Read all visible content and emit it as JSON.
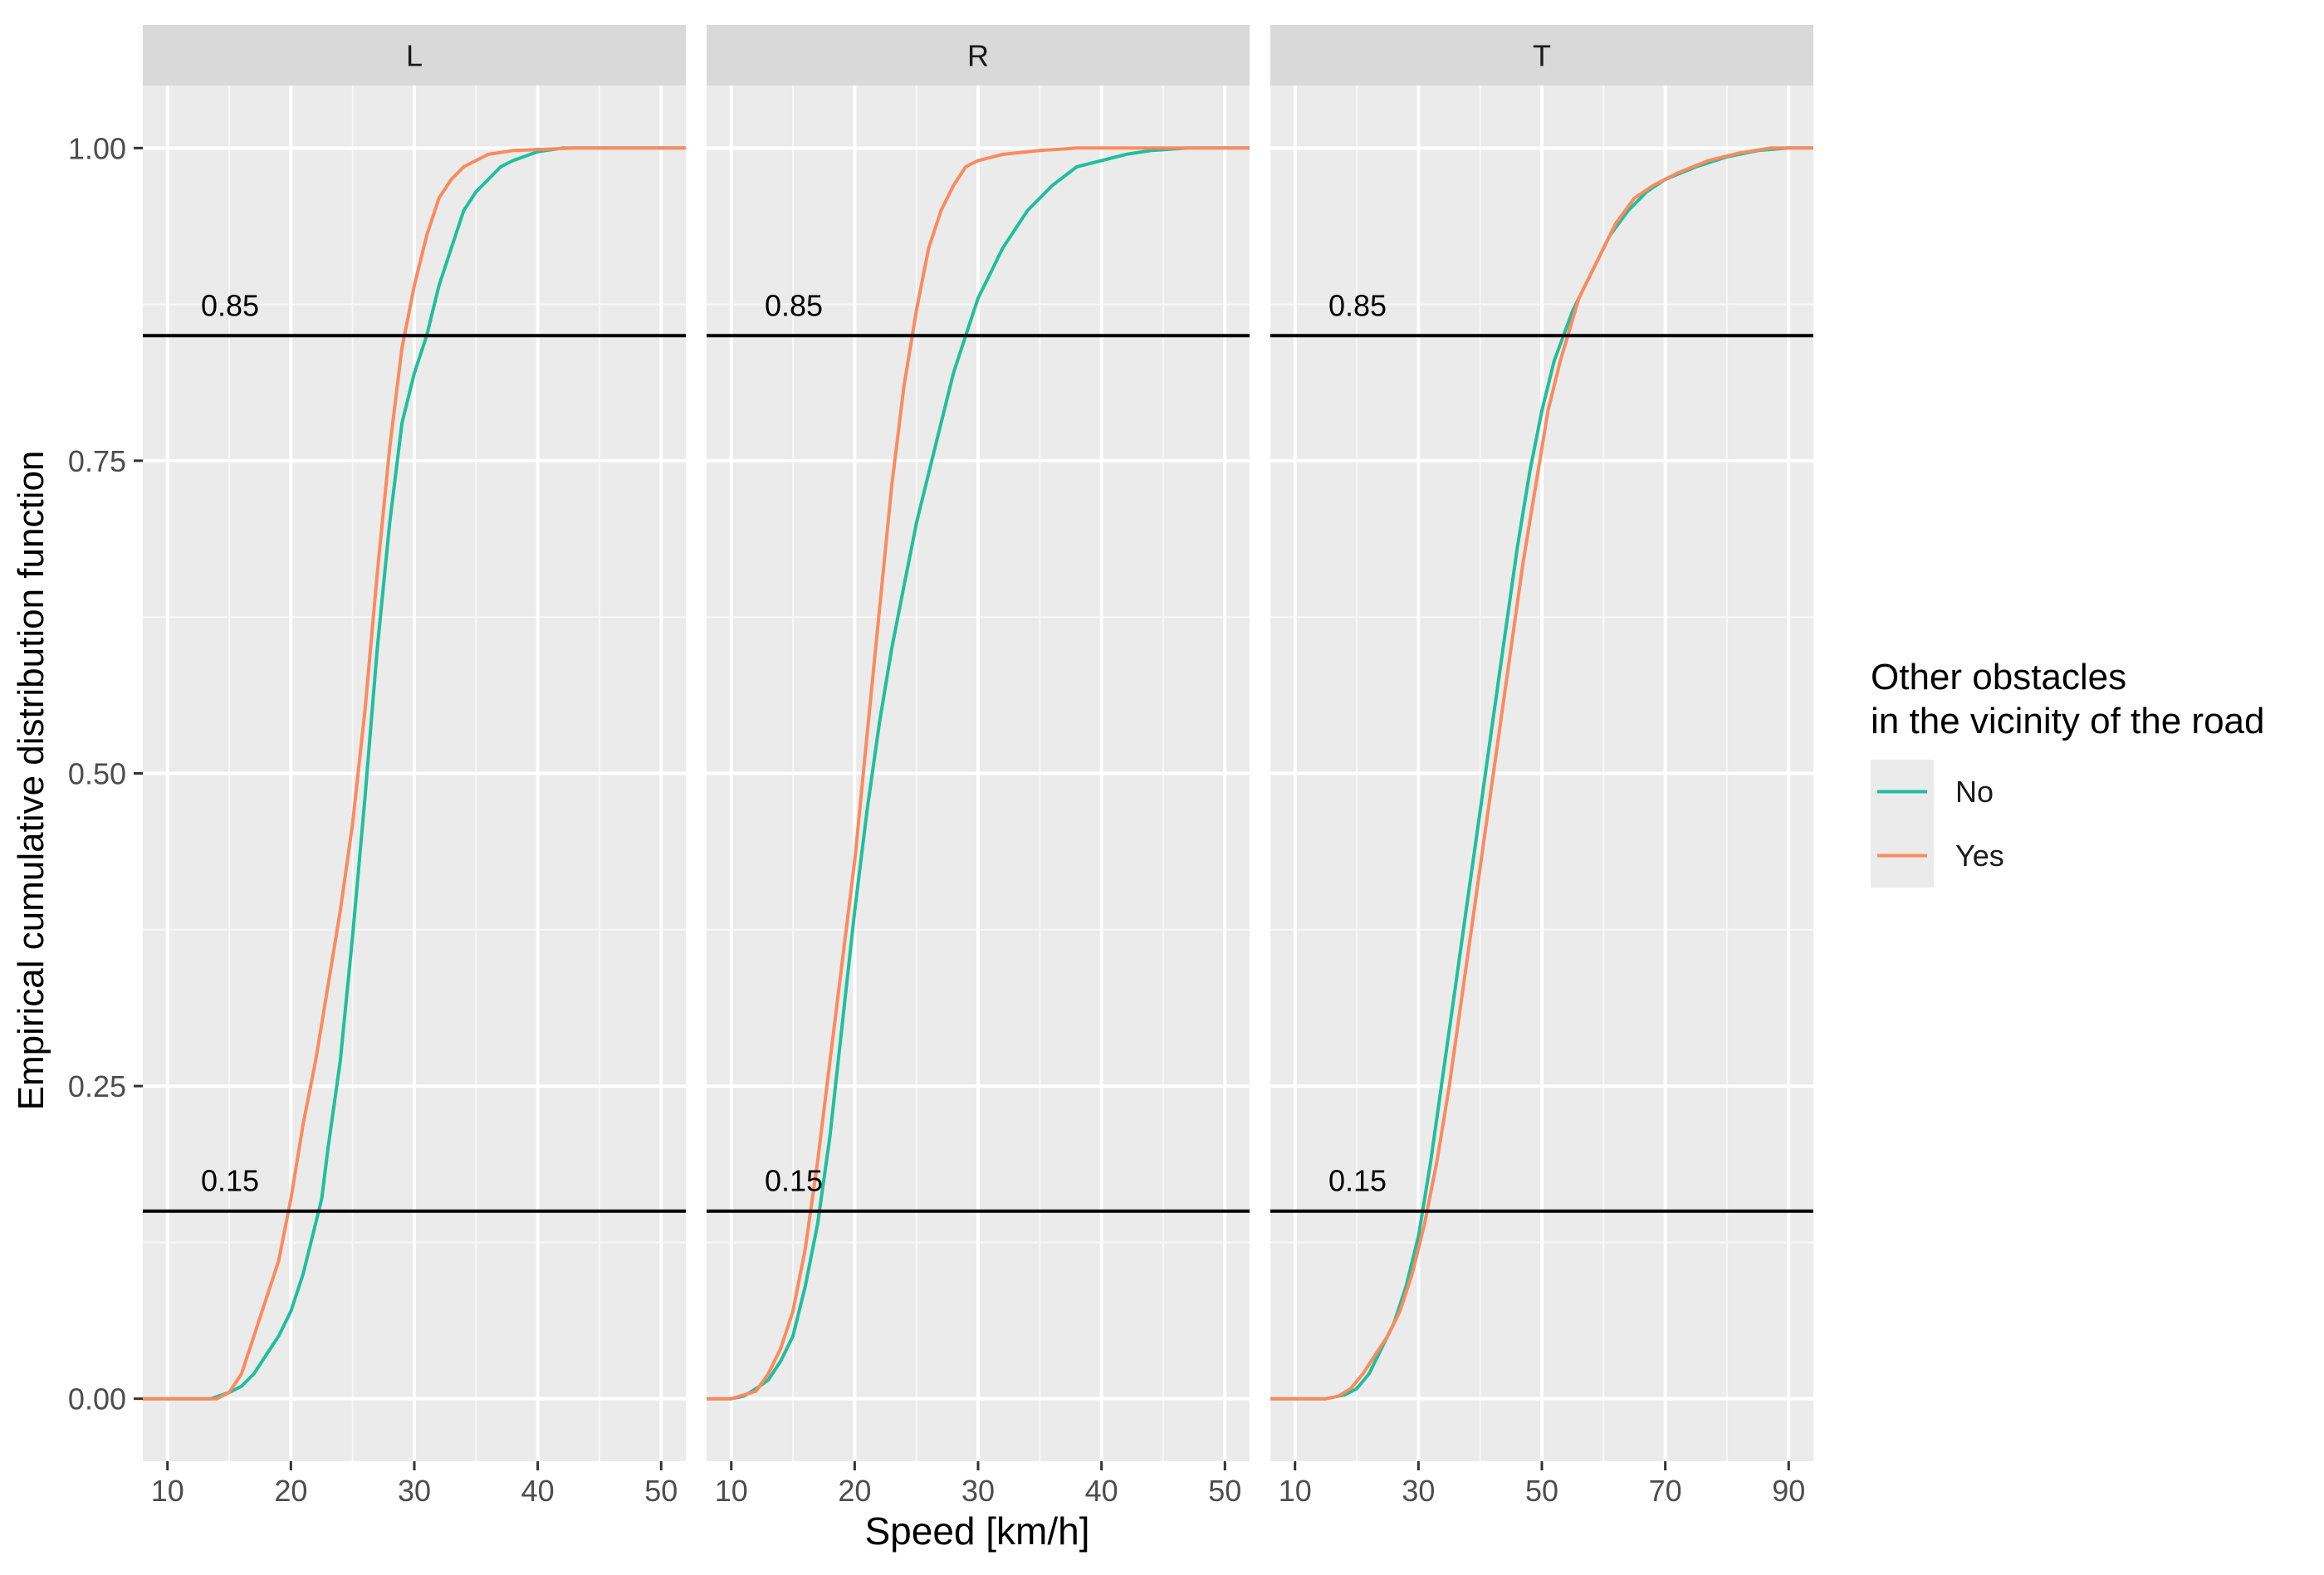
{
  "chart_data": {
    "type": "line",
    "ylabel": "Empirical cumulative distribution function",
    "xlabel": "Speed [km/h]",
    "ylim": [
      -0.05,
      1.05
    ],
    "y_ticks": [
      0.0,
      0.25,
      0.5,
      0.75,
      1.0
    ],
    "y_tick_labels": [
      "0.00",
      "0.25",
      "0.50",
      "0.75",
      "1.00"
    ],
    "grid": true,
    "hlines": [
      {
        "y": 0.85,
        "label": "0.85"
      },
      {
        "y": 0.15,
        "label": "0.15"
      }
    ],
    "legend": {
      "title_lines": [
        "Other obstacles",
        "in the vicinity of the road"
      ],
      "position": "right",
      "entries": [
        {
          "name": "No",
          "color": "#1fbf9c"
        },
        {
          "name": "Yes",
          "color": "#fb8a5f"
        }
      ]
    },
    "panels": [
      {
        "name": "L",
        "xlim": [
          8,
          52
        ],
        "x_ticks": [
          10,
          20,
          30,
          40,
          50
        ],
        "x_tick_labels": [
          "10",
          "20",
          "30",
          "40",
          "50"
        ],
        "x_minor": [
          15,
          25,
          35,
          45
        ],
        "series": [
          {
            "name": "No",
            "points": [
              [
                8,
                0
              ],
              [
                13.5,
                0
              ],
              [
                15,
                0.005
              ],
              [
                16,
                0.01
              ],
              [
                17,
                0.02
              ],
              [
                18,
                0.035
              ],
              [
                19,
                0.05
              ],
              [
                20,
                0.07
              ],
              [
                21,
                0.1
              ],
              [
                22,
                0.14
              ],
              [
                22.5,
                0.16
              ],
              [
                23,
                0.2
              ],
              [
                24,
                0.27
              ],
              [
                25,
                0.37
              ],
              [
                26,
                0.48
              ],
              [
                27,
                0.6
              ],
              [
                28,
                0.7
              ],
              [
                29,
                0.78
              ],
              [
                30,
                0.82
              ],
              [
                31,
                0.85
              ],
              [
                32,
                0.89
              ],
              [
                33,
                0.92
              ],
              [
                34,
                0.95
              ],
              [
                35,
                0.965
              ],
              [
                36,
                0.975
              ],
              [
                37,
                0.985
              ],
              [
                38,
                0.99
              ],
              [
                40,
                0.997
              ],
              [
                42,
                1.0
              ],
              [
                52,
                1.0
              ]
            ]
          },
          {
            "name": "Yes",
            "points": [
              [
                8,
                0
              ],
              [
                14,
                0
              ],
              [
                15,
                0.005
              ],
              [
                16,
                0.02
              ],
              [
                17,
                0.05
              ],
              [
                18,
                0.08
              ],
              [
                19,
                0.11
              ],
              [
                20,
                0.16
              ],
              [
                21,
                0.22
              ],
              [
                22,
                0.27
              ],
              [
                23,
                0.33
              ],
              [
                24,
                0.39
              ],
              [
                25,
                0.46
              ],
              [
                26,
                0.55
              ],
              [
                27,
                0.66
              ],
              [
                28,
                0.76
              ],
              [
                29,
                0.84
              ],
              [
                30,
                0.89
              ],
              [
                31,
                0.93
              ],
              [
                32,
                0.96
              ],
              [
                33,
                0.975
              ],
              [
                34,
                0.985
              ],
              [
                35,
                0.99
              ],
              [
                36,
                0.995
              ],
              [
                38,
                0.998
              ],
              [
                43,
                1.0
              ],
              [
                52,
                1.0
              ]
            ]
          }
        ]
      },
      {
        "name": "R",
        "xlim": [
          8,
          52
        ],
        "x_ticks": [
          10,
          20,
          30,
          40,
          50
        ],
        "x_tick_labels": [
          "10",
          "20",
          "30",
          "40",
          "50"
        ],
        "x_minor": [
          15,
          25,
          35,
          45
        ],
        "series": [
          {
            "name": "No",
            "points": [
              [
                8,
                0
              ],
              [
                10,
                0
              ],
              [
                11,
                0.002
              ],
              [
                12,
                0.008
              ],
              [
                13,
                0.015
              ],
              [
                14,
                0.03
              ],
              [
                15,
                0.05
              ],
              [
                16,
                0.09
              ],
              [
                17,
                0.14
              ],
              [
                18,
                0.21
              ],
              [
                19,
                0.3
              ],
              [
                20,
                0.39
              ],
              [
                21,
                0.47
              ],
              [
                22,
                0.54
              ],
              [
                23,
                0.6
              ],
              [
                24,
                0.65
              ],
              [
                25,
                0.7
              ],
              [
                26,
                0.74
              ],
              [
                27,
                0.78
              ],
              [
                28,
                0.82
              ],
              [
                29,
                0.85
              ],
              [
                30,
                0.88
              ],
              [
                31,
                0.9
              ],
              [
                32,
                0.92
              ],
              [
                34,
                0.95
              ],
              [
                36,
                0.97
              ],
              [
                38,
                0.985
              ],
              [
                40,
                0.99
              ],
              [
                42,
                0.995
              ],
              [
                44,
                0.998
              ],
              [
                47,
                1.0
              ],
              [
                52,
                1.0
              ]
            ]
          },
          {
            "name": "Yes",
            "points": [
              [
                8,
                0
              ],
              [
                10,
                0
              ],
              [
                11,
                0.003
              ],
              [
                12,
                0.006
              ],
              [
                13,
                0.02
              ],
              [
                14,
                0.04
              ],
              [
                15,
                0.07
              ],
              [
                16,
                0.12
              ],
              [
                17,
                0.19
              ],
              [
                18,
                0.27
              ],
              [
                19,
                0.35
              ],
              [
                20,
                0.43
              ],
              [
                21,
                0.53
              ],
              [
                22,
                0.63
              ],
              [
                23,
                0.73
              ],
              [
                24,
                0.81
              ],
              [
                25,
                0.87
              ],
              [
                26,
                0.92
              ],
              [
                27,
                0.95
              ],
              [
                28,
                0.97
              ],
              [
                29,
                0.985
              ],
              [
                30,
                0.99
              ],
              [
                32,
                0.995
              ],
              [
                35,
                0.998
              ],
              [
                38,
                1.0
              ],
              [
                52,
                1.0
              ]
            ]
          }
        ]
      },
      {
        "name": "T",
        "xlim": [
          6,
          94
        ],
        "x_ticks": [
          10,
          30,
          50,
          70,
          90
        ],
        "x_tick_labels": [
          "10",
          "30",
          "50",
          "70",
          "90"
        ],
        "x_minor": [
          20,
          40,
          60,
          80
        ],
        "series": [
          {
            "name": "No",
            "points": [
              [
                6,
                0
              ],
              [
                15,
                0
              ],
              [
                18,
                0.003
              ],
              [
                20,
                0.008
              ],
              [
                22,
                0.02
              ],
              [
                24,
                0.04
              ],
              [
                26,
                0.06
              ],
              [
                28,
                0.09
              ],
              [
                30,
                0.13
              ],
              [
                32,
                0.19
              ],
              [
                34,
                0.26
              ],
              [
                36,
                0.33
              ],
              [
                38,
                0.4
              ],
              [
                40,
                0.47
              ],
              [
                42,
                0.54
              ],
              [
                44,
                0.61
              ],
              [
                46,
                0.68
              ],
              [
                48,
                0.74
              ],
              [
                50,
                0.79
              ],
              [
                52,
                0.83
              ],
              [
                55,
                0.87
              ],
              [
                58,
                0.9
              ],
              [
                61,
                0.93
              ],
              [
                64,
                0.95
              ],
              [
                67,
                0.965
              ],
              [
                70,
                0.975
              ],
              [
                75,
                0.985
              ],
              [
                80,
                0.993
              ],
              [
                85,
                0.998
              ],
              [
                90,
                1.0
              ],
              [
                94,
                1.0
              ]
            ]
          },
          {
            "name": "Yes",
            "points": [
              [
                6,
                0
              ],
              [
                15,
                0
              ],
              [
                17,
                0.002
              ],
              [
                19,
                0.008
              ],
              [
                21,
                0.02
              ],
              [
                23,
                0.035
              ],
              [
                25,
                0.05
              ],
              [
                27,
                0.07
              ],
              [
                29,
                0.1
              ],
              [
                31,
                0.14
              ],
              [
                33,
                0.19
              ],
              [
                35,
                0.25
              ],
              [
                37,
                0.32
              ],
              [
                39,
                0.39
              ],
              [
                41,
                0.46
              ],
              [
                43,
                0.53
              ],
              [
                45,
                0.6
              ],
              [
                47,
                0.67
              ],
              [
                49,
                0.73
              ],
              [
                51,
                0.79
              ],
              [
                53,
                0.83
              ],
              [
                56,
                0.88
              ],
              [
                59,
                0.91
              ],
              [
                62,
                0.94
              ],
              [
                65,
                0.96
              ],
              [
                68,
                0.97
              ],
              [
                72,
                0.98
              ],
              [
                77,
                0.99
              ],
              [
                82,
                0.996
              ],
              [
                87,
                1.0
              ],
              [
                94,
                1.0
              ]
            ]
          }
        ]
      }
    ]
  }
}
